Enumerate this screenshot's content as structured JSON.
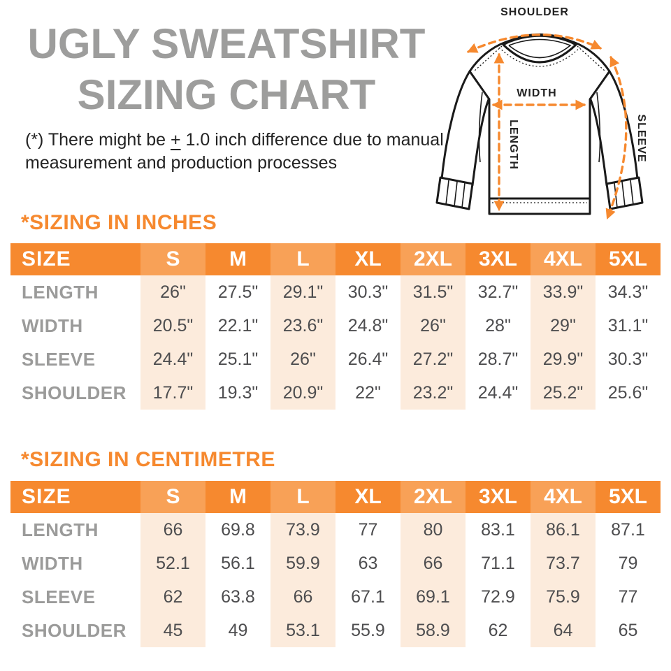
{
  "title": {
    "line1": "UGLY SWEATSHIRT",
    "line2": "SIZING CHART"
  },
  "disclaimer": {
    "prefix": "(*) There might be",
    "plus_minus": "+",
    "suffix": "1.0 inch difference due to manual measurement and production processes"
  },
  "diagram": {
    "labels": {
      "shoulder": "SHOULDER",
      "width": "WIDTH",
      "length": "LENGTH",
      "sleeve": "SLEEVE"
    }
  },
  "tables": [
    {
      "heading": "*SIZING IN INCHES",
      "columns": [
        "SIZE",
        "S",
        "M",
        "L",
        "XL",
        "2XL",
        "3XL",
        "4XL",
        "5XL"
      ],
      "highlight_columns": [
        "S",
        "L",
        "2XL",
        "4XL"
      ],
      "rows": [
        {
          "label": "LENGTH",
          "values": [
            "26\"",
            "27.5\"",
            "29.1\"",
            "30.3\"",
            "31.5\"",
            "32.7\"",
            "33.9\"",
            "34.3\""
          ]
        },
        {
          "label": "WIDTH",
          "values": [
            "20.5\"",
            "22.1\"",
            "23.6\"",
            "24.8\"",
            "26\"",
            "28\"",
            "29\"",
            "31.1\""
          ]
        },
        {
          "label": "SLEEVE",
          "values": [
            "24.4\"",
            "25.1\"",
            "26\"",
            "26.4\"",
            "27.2\"",
            "28.7\"",
            "29.9\"",
            "30.3\""
          ]
        },
        {
          "label": "SHOULDER",
          "values": [
            "17.7\"",
            "19.3\"",
            "20.9\"",
            "22\"",
            "23.2\"",
            "24.4\"",
            "25.2\"",
            "25.6\""
          ]
        }
      ]
    },
    {
      "heading": "*SIZING IN CENTIMETRE",
      "columns": [
        "SIZE",
        "S",
        "M",
        "L",
        "XL",
        "2XL",
        "3XL",
        "4XL",
        "5XL"
      ],
      "highlight_columns": [
        "S",
        "L",
        "2XL",
        "4XL"
      ],
      "rows": [
        {
          "label": "LENGTH",
          "values": [
            "66",
            "69.8",
            "73.9",
            "77",
            "80",
            "83.1",
            "86.1",
            "87.1"
          ]
        },
        {
          "label": "WIDTH",
          "values": [
            "52.1",
            "56.1",
            "59.9",
            "63",
            "66",
            "71.1",
            "73.7",
            "79"
          ]
        },
        {
          "label": "SLEEVE",
          "values": [
            "62",
            "63.8",
            "66",
            "67.1",
            "69.1",
            "72.9",
            "75.9",
            "77"
          ]
        },
        {
          "label": "SHOULDER",
          "values": [
            "45",
            "49",
            "53.1",
            "55.9",
            "58.9",
            "62",
            "64",
            "65"
          ]
        }
      ]
    }
  ],
  "colors": {
    "accent_orange": "#F6892F",
    "accent_orange_light": "#F8A157",
    "stripe_peach": "#FCEBDC",
    "title_gray": "#9D9D9C",
    "value_gray": "#4D4D4F",
    "text_black": "#232323"
  }
}
